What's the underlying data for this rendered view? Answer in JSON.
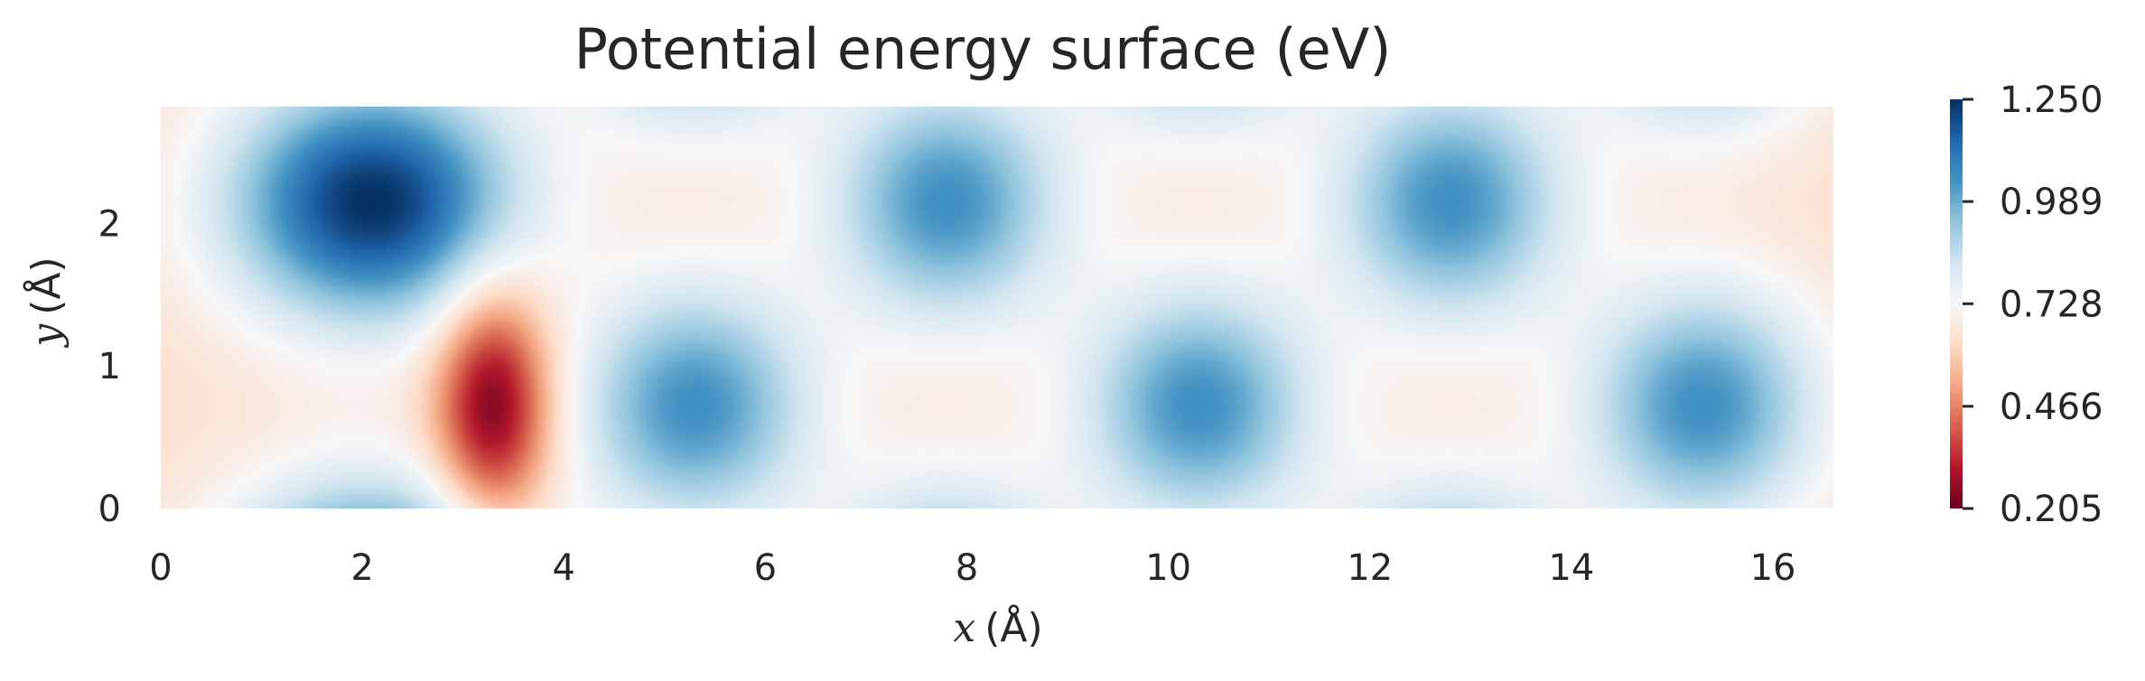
{
  "chart_data": {
    "type": "heatmap",
    "title": "Potential energy surface (eV)",
    "xlabel_var": "x",
    "xlabel_unit": "(Å)",
    "ylabel_var": "y",
    "ylabel_unit": "(Å)",
    "xlim": [
      0,
      16.6
    ],
    "ylim": [
      0,
      2.82
    ],
    "x_ticks": [
      0,
      2,
      4,
      6,
      8,
      10,
      12,
      14,
      16
    ],
    "y_ticks": [
      0,
      1,
      2
    ],
    "colorbar": {
      "cmap": "RdBu",
      "min": 0.205,
      "max": 1.25,
      "ticks": [
        "1.250",
        "0.989",
        "0.728",
        "0.466",
        "0.205"
      ],
      "tick_values": [
        1.25,
        0.989,
        0.728,
        0.466,
        0.205
      ],
      "colors_low_to_high": [
        "#67001f",
        "#b2182b",
        "#d6604d",
        "#f4a582",
        "#fddbc7",
        "#f7f7f7",
        "#d1e5f0",
        "#92c5de",
        "#4393c3",
        "#2166ac",
        "#053061"
      ]
    },
    "features": {
      "minima": [
        {
          "x": 3.3,
          "y": 0.72,
          "value": 0.205
        }
      ],
      "maxima": [
        {
          "x": 2.1,
          "y": 2.15,
          "value": 1.25
        },
        {
          "x": 5.3,
          "y": 0.72,
          "value": 1.05
        },
        {
          "x": 7.8,
          "y": 2.15,
          "value": 1.05
        },
        {
          "x": 10.3,
          "y": 0.72,
          "value": 1.05
        },
        {
          "x": 12.8,
          "y": 2.15,
          "value": 1.05
        },
        {
          "x": 15.3,
          "y": 0.72,
          "value": 1.05
        }
      ]
    },
    "grid": false
  }
}
